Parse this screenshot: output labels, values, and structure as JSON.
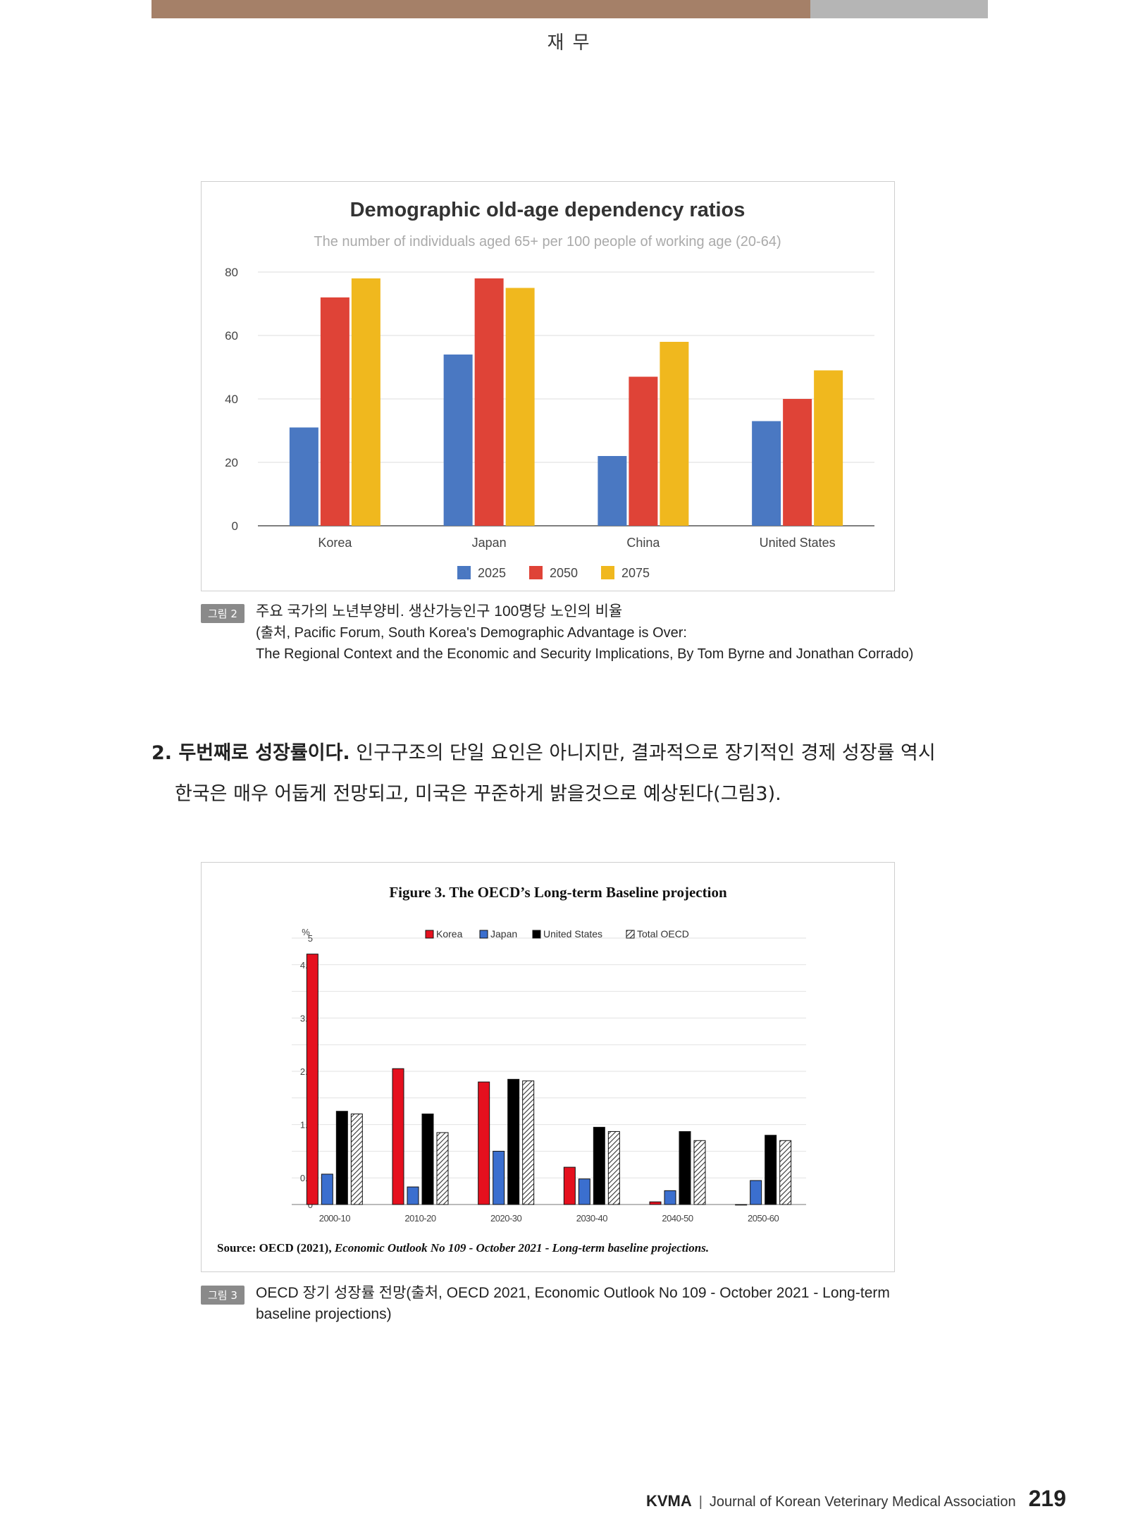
{
  "header": {
    "section": "재 무"
  },
  "figure1": {
    "tag": "그림 2",
    "caption_line1": "주요 국가의 노년부양비. 생산가능인구 100명당 노인의 비율",
    "caption_line2": "(출처, Pacific Forum, South Korea's Demographic Advantage is Over:",
    "caption_line3": "The Regional Context and the Economic and Security Implications, By Tom Byrne and Jonathan Corrado)"
  },
  "figure2": {
    "tag": "그림 3",
    "caption_line1": "OECD 장기 성장률 전망(출처, OECD 2021, Economic Outlook No 109 - October 2021 - Long-term",
    "caption_line2": "baseline projections)"
  },
  "paragraph": {
    "lead": "2. 두번째로 성장률이다.",
    "line1_rest": " 인구구조의 단일 요인은 아니지만, 결과적으로 장기적인 경제 성장률 역시",
    "line2": "한국은 매우 어둡게 전망되고, 미국은 꾸준하게 밝을것으로 예상된다(그림3)."
  },
  "footer": {
    "brand": "KVMA",
    "separator": "|",
    "journal": "Journal of Korean Veterinary Medical Association",
    "page": "219"
  },
  "colors": {
    "topbar_brown": "#a58068",
    "topbar_grey": "#b5b5b5"
  },
  "chart_data": [
    {
      "type": "bar",
      "title": "Demographic old-age dependency ratios",
      "subtitle": "The number of individuals aged 65+ per 100 people of working age (20-64)",
      "categories": [
        "Korea",
        "Japan",
        "China",
        "United States"
      ],
      "series": [
        {
          "name": "2025",
          "color": "#4a78c2",
          "values": [
            31,
            54,
            22,
            33
          ]
        },
        {
          "name": "2050",
          "color": "#df4337",
          "values": [
            72,
            78,
            47,
            40
          ]
        },
        {
          "name": "2075",
          "color": "#f0b81e",
          "values": [
            78,
            75,
            58,
            49
          ]
        }
      ],
      "yticks": [
        "0",
        "20",
        "40",
        "60",
        "80"
      ],
      "ylim": [
        0,
        80
      ],
      "grid": true,
      "legend": "bottom"
    },
    {
      "type": "bar",
      "title": "Figure 3. The OECD’s Long-term Baseline projection",
      "ylabel": "%",
      "categories": [
        "2000-10",
        "2010-20",
        "2020-30",
        "2030-40",
        "2040-50",
        "2050-60"
      ],
      "series": [
        {
          "name": "Korea",
          "color": "#e5101e",
          "pattern": "solid",
          "values": [
            4.7,
            2.55,
            2.3,
            0.7,
            0.05,
            0.0
          ]
        },
        {
          "name": "Japan",
          "color": "#3b6fcf",
          "pattern": "solid",
          "values": [
            0.57,
            0.33,
            1.0,
            0.48,
            0.26,
            0.45
          ]
        },
        {
          "name": "United States",
          "color": "#000000",
          "pattern": "solid",
          "values": [
            1.75,
            1.7,
            2.35,
            1.45,
            1.37,
            1.3
          ]
        },
        {
          "name": "Total OECD",
          "color": "#555555",
          "pattern": "hatched",
          "values": [
            1.7,
            1.35,
            2.32,
            1.37,
            1.2,
            1.2
          ]
        }
      ],
      "yticks": [
        "0",
        "0.5",
        "1",
        "1.5",
        "2",
        "2.5",
        "3",
        "3.5",
        "4",
        "4.5",
        "5"
      ],
      "ylim": [
        0,
        5
      ],
      "grid": true,
      "legend": "top",
      "source_label": "Source: OECD (2021),",
      "source_italic": "Economic Outlook No 109 - October 2021 - Long-term baseline projections."
    }
  ]
}
